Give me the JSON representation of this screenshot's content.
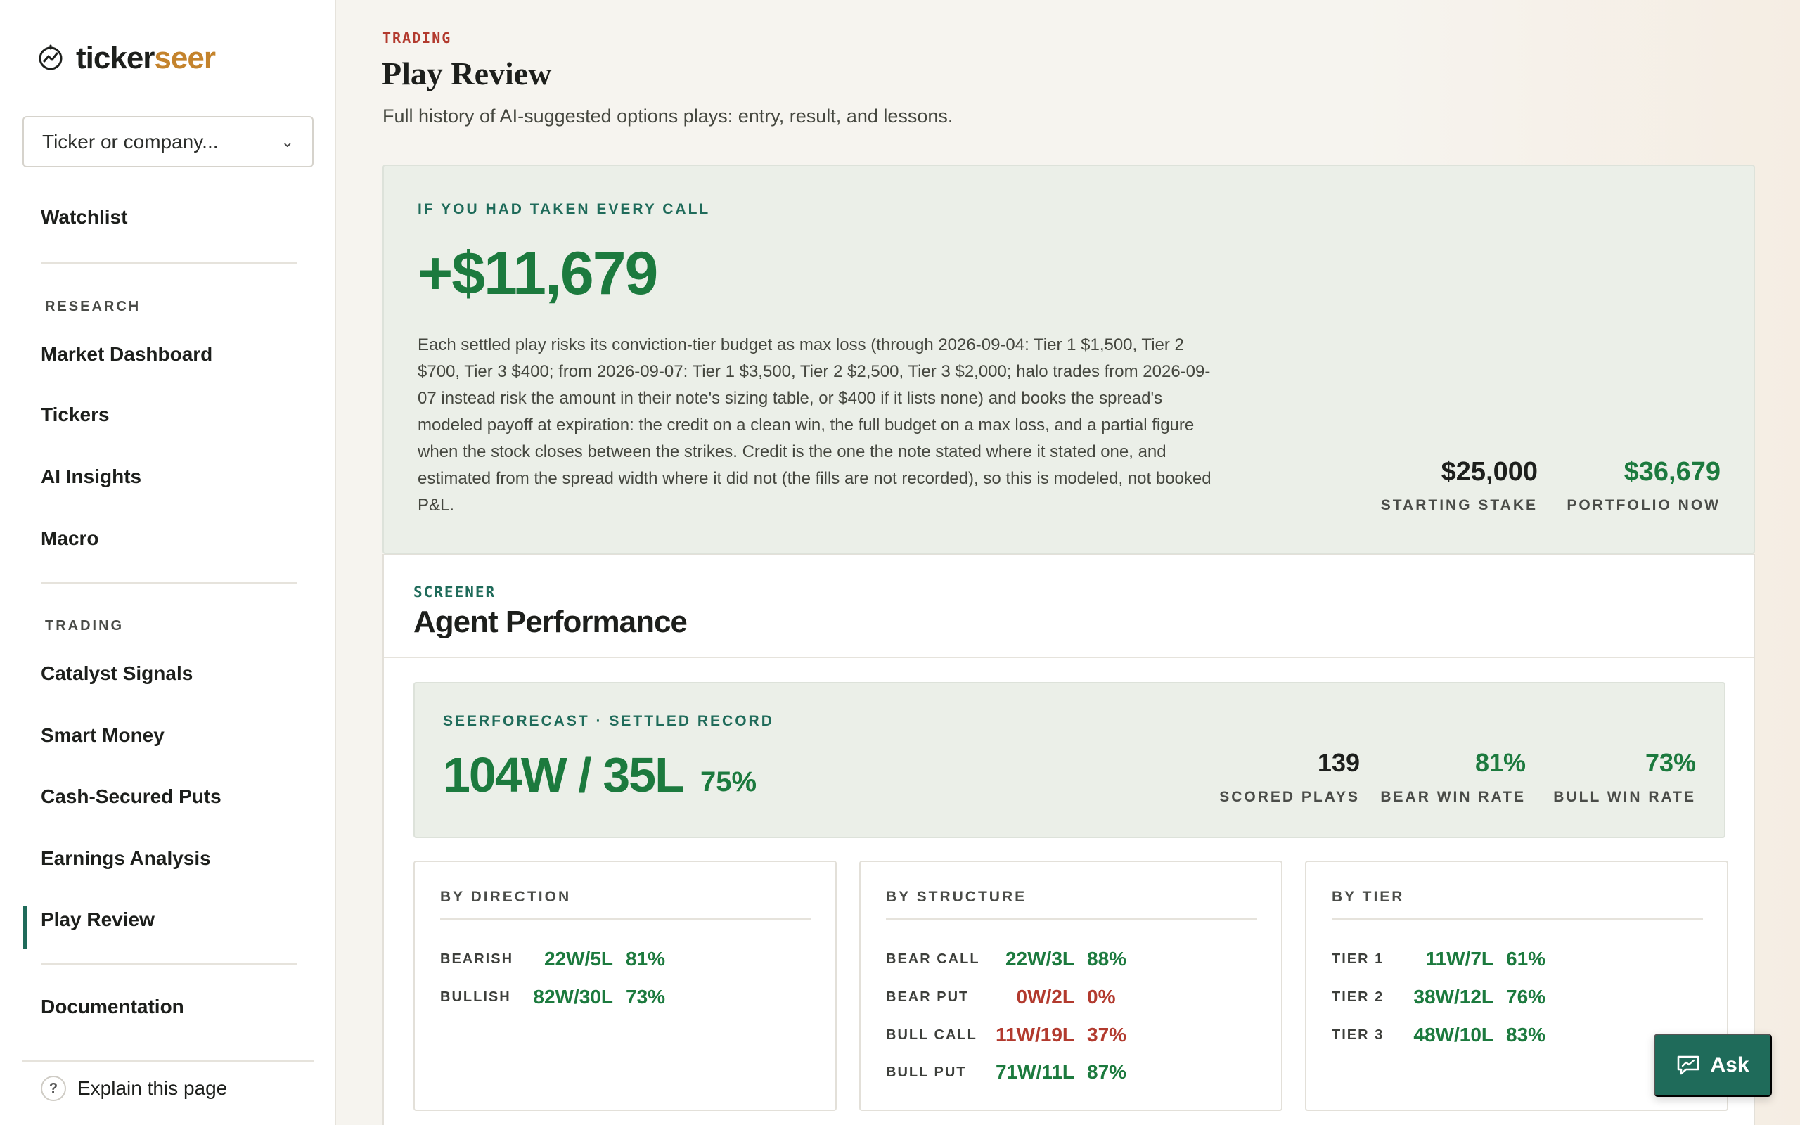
{
  "brand": {
    "part1": "ticker",
    "part2": "seer",
    "icon": "chart-circle-icon",
    "accent": "#c4832c"
  },
  "sidebar": {
    "search_placeholder": "Ticker or company...",
    "watchlist": "Watchlist",
    "research_heading": "RESEARCH",
    "research_items": [
      "Market Dashboard",
      "Tickers",
      "AI Insights",
      "Macro"
    ],
    "trading_heading": "TRADING",
    "trading_items": [
      "Catalyst Signals",
      "Smart Money",
      "Cash-Secured Puts",
      "Earnings Analysis",
      "Play Review"
    ],
    "active_item": "Play Review",
    "documentation": "Documentation",
    "explain": "Explain this page"
  },
  "header": {
    "eyebrow": "TRADING",
    "title": "Play Review",
    "subtitle": "Full history of AI-suggested options plays: entry, result, and lessons."
  },
  "hero": {
    "eyebrow": "IF YOU HAD TAKEN EVERY CALL",
    "value": "+$11,679",
    "description": "Each settled play risks its conviction-tier budget as max loss (through 2026-09-04: Tier 1 $1,500, Tier 2 $700, Tier 3 $400; from 2026-09-07: Tier 1 $3,500, Tier 2 $2,500, Tier 3 $2,000; halo trades from 2026-09-07 instead risk the amount in their note's sizing table, or $400 if it lists none) and books the spread's modeled payoff at expiration: the credit on a clean win, the full budget on a max loss, and a partial figure when the stock closes between the strikes. Credit is the one the note stated where it stated one, and estimated from the spread width where it did not (the fills are not recorded), so this is modeled, not booked P&L.",
    "starting_stake_value": "$25,000",
    "starting_stake_label": "STARTING STAKE",
    "portfolio_now_value": "$36,679",
    "portfolio_now_label": "PORTFOLIO NOW"
  },
  "panel": {
    "eyebrow": "SCREENER",
    "title": "Agent Performance",
    "record": {
      "eyebrow": "SEERFORECAST · SETTLED RECORD",
      "wl": "104W / 35L",
      "pct": "75%",
      "scored_value": "139",
      "scored_label": "SCORED PLAYS",
      "bear_value": "81%",
      "bear_label": "BEAR WIN RATE",
      "bull_value": "73%",
      "bull_label": "BULL WIN RATE"
    },
    "by_direction": {
      "title": "BY DIRECTION",
      "rows": [
        {
          "label": "BEARISH",
          "wl": "22W/5L",
          "pct": "81%"
        },
        {
          "label": "BULLISH",
          "wl": "82W/30L",
          "pct": "73%"
        }
      ]
    },
    "by_structure": {
      "title": "BY STRUCTURE",
      "rows": [
        {
          "label": "BEAR CALL",
          "wl": "22W/3L",
          "pct": "88%"
        },
        {
          "label": "BEAR PUT",
          "wl": "0W/2L",
          "pct": "0%"
        },
        {
          "label": "BULL CALL",
          "wl": "11W/19L",
          "pct": "37%"
        },
        {
          "label": "BULL PUT",
          "wl": "71W/11L",
          "pct": "87%"
        }
      ]
    },
    "by_tier": {
      "title": "BY TIER",
      "rows": [
        {
          "label": "TIER 1",
          "wl": "11W/7L",
          "pct": "61%"
        },
        {
          "label": "TIER 2",
          "wl": "38W/12L",
          "pct": "76%"
        },
        {
          "label": "TIER 3",
          "wl": "48W/10L",
          "pct": "83%"
        }
      ]
    }
  },
  "ask_button": {
    "label": "Ask",
    "icon": "chat-chart-icon"
  },
  "colors": {
    "positive": "#1c7a3e",
    "negative": "#b23a2e",
    "brand_teal": "#1f6b5a"
  }
}
